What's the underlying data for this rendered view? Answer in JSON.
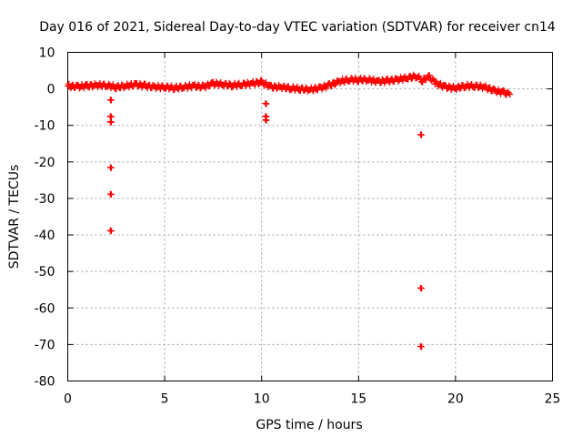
{
  "chart_data": {
    "type": "scatter",
    "title": "Day 016 of 2021, Sidereal Day-to-day VTEC variation (SDTVAR) for receiver cn14",
    "xlabel": "GPS time / hours",
    "ylabel": "SDTVAR / TECUs",
    "xlim": [
      0,
      25
    ],
    "ylim": [
      -80,
      10
    ],
    "x_ticks": [
      "0",
      "5",
      "10",
      "15",
      "20",
      "25"
    ],
    "y_ticks": [
      "10",
      "0",
      "-10",
      "-20",
      "-30",
      "-40",
      "-50",
      "-60",
      "-70",
      "-80"
    ],
    "grid": true,
    "marker": "+",
    "color": "#ff0000",
    "series": [
      {
        "name": "main_trace",
        "note": "dense near-continuous band of + markers",
        "x": [
          0.0,
          0.5,
          1.0,
          1.5,
          2.0,
          2.5,
          3.0,
          3.5,
          4.0,
          4.5,
          5.0,
          5.5,
          6.0,
          6.5,
          7.0,
          7.5,
          8.0,
          8.5,
          9.0,
          9.5,
          10.0,
          10.5,
          11.0,
          11.5,
          12.0,
          12.5,
          13.0,
          13.5,
          14.0,
          14.5,
          15.0,
          15.5,
          16.0,
          16.5,
          17.0,
          17.5,
          18.0,
          18.3,
          18.6,
          19.0,
          19.5,
          20.0,
          20.5,
          21.0,
          21.5,
          22.0,
          22.5,
          22.8
        ],
        "y": [
          0.8,
          0.6,
          0.8,
          1.0,
          1.0,
          0.5,
          0.8,
          1.2,
          0.8,
          0.5,
          0.5,
          0.3,
          0.5,
          0.8,
          0.5,
          1.5,
          1.2,
          1.0,
          1.2,
          1.5,
          1.8,
          0.5,
          0.5,
          0.2,
          0.0,
          -0.2,
          0.2,
          1.0,
          2.0,
          2.5,
          2.5,
          2.5,
          2.0,
          2.2,
          2.5,
          3.0,
          3.5,
          2.2,
          3.5,
          1.5,
          0.5,
          0.2,
          0.8,
          0.8,
          0.5,
          -0.5,
          -1.0,
          -1.5
        ]
      },
      {
        "name": "outliers",
        "x": [
          2.2,
          2.2,
          2.2,
          2.2,
          2.2,
          2.2,
          10.2,
          10.2,
          10.2,
          18.2,
          18.2,
          18.2
        ],
        "y": [
          -3,
          -7.5,
          -9,
          -21.5,
          -28.8,
          -38.8,
          -4,
          -7.5,
          -8.5,
          -12.5,
          -54.5,
          -70.5
        ]
      }
    ]
  }
}
